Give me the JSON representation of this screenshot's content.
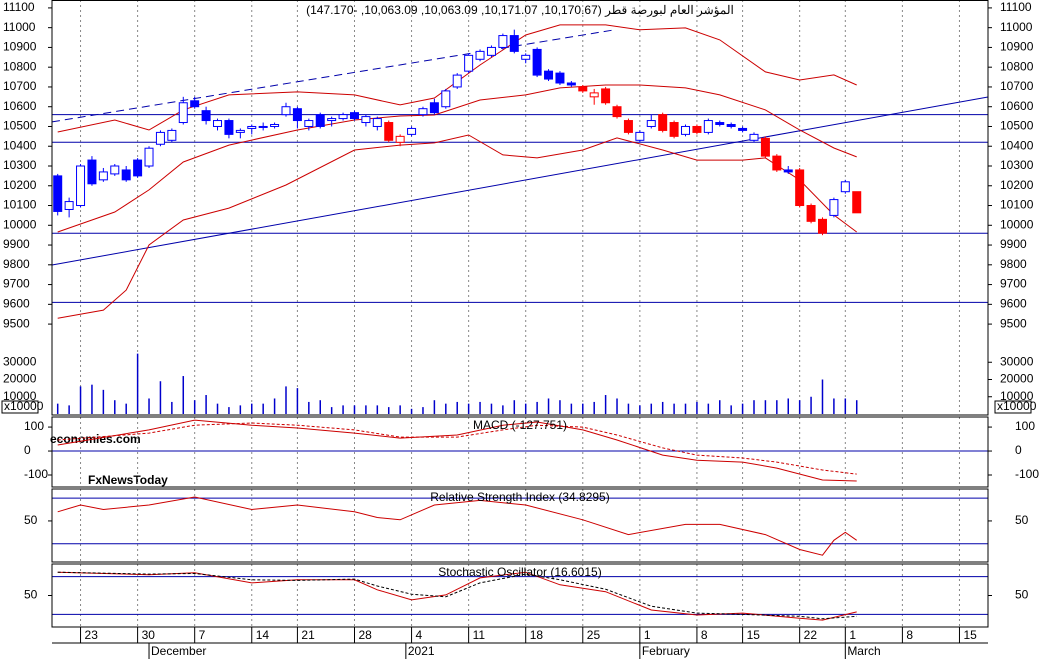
{
  "chart_data": {
    "type": "candlestick",
    "title": "المؤشر العام لبورصة قطر (10,170.67, 10,171.07, 10,063.09, 10,063.09, -147.170)",
    "xlim": [
      -0.5,
      81.5
    ],
    "ylim": [
      9040,
      11140
    ],
    "yticks": [
      9500,
      9600,
      9700,
      9800,
      9900,
      10000,
      10100,
      10200,
      10300,
      10400,
      10500,
      10600,
      10700,
      10800,
      10900,
      11000,
      11100
    ],
    "xticks": [
      {
        "value": 2,
        "label": "23"
      },
      {
        "value": 7,
        "label": "30"
      },
      {
        "value": 12,
        "label": "7"
      },
      {
        "value": 17,
        "label": "14"
      },
      {
        "value": 21,
        "label": "21"
      },
      {
        "value": 26,
        "label": "28"
      },
      {
        "value": 31,
        "label": "4"
      },
      {
        "value": 36,
        "label": "11"
      },
      {
        "value": 41,
        "label": "18"
      },
      {
        "value": 46,
        "label": "25"
      },
      {
        "value": 51,
        "label": "1"
      },
      {
        "value": 56,
        "label": "8"
      },
      {
        "value": 60,
        "label": "15"
      },
      {
        "value": 65,
        "label": "22"
      },
      {
        "value": 69,
        "label": "1"
      },
      {
        "value": 74,
        "label": "8"
      },
      {
        "value": 79,
        "label": "15"
      }
    ],
    "months": [
      {
        "value": 8,
        "label": "December"
      },
      {
        "value": 30.5,
        "label": "2021"
      },
      {
        "value": 51,
        "label": "February"
      },
      {
        "value": 69,
        "label": "March"
      }
    ],
    "ohlc": [
      [
        10250,
        10260,
        10050,
        10070
      ],
      [
        10080,
        10140,
        10040,
        10120
      ],
      [
        10100,
        10310,
        10090,
        10300
      ],
      [
        10330,
        10350,
        10200,
        10210
      ],
      [
        10230,
        10290,
        10220,
        10270
      ],
      [
        10260,
        10310,
        10250,
        10300
      ],
      [
        10280,
        10300,
        10220,
        10230
      ],
      [
        10330,
        10340,
        10240,
        10250
      ],
      [
        10300,
        10400,
        10290,
        10390
      ],
      [
        10410,
        10480,
        10400,
        10470
      ],
      [
        10430,
        10490,
        10420,
        10480
      ],
      [
        10520,
        10650,
        10510,
        10620
      ],
      [
        10630,
        10650,
        10590,
        10600
      ],
      [
        10580,
        10600,
        10510,
        10530
      ],
      [
        10500,
        10540,
        10480,
        10530
      ],
      [
        10530,
        10540,
        10440,
        10460
      ],
      [
        10470,
        10490,
        10440,
        10480
      ],
      [
        10490,
        10510,
        10460,
        10500
      ],
      [
        10500,
        10520,
        10480,
        10495
      ],
      [
        10500,
        10520,
        10490,
        10510
      ],
      [
        10560,
        10620,
        10550,
        10600
      ],
      [
        10590,
        10600,
        10490,
        10530
      ],
      [
        10500,
        10540,
        10480,
        10530
      ],
      [
        10560,
        10570,
        10490,
        10500
      ],
      [
        10530,
        10550,
        10500,
        10540
      ],
      [
        10540,
        10570,
        10530,
        10560
      ],
      [
        10570,
        10580,
        10530,
        10540
      ],
      [
        10520,
        10560,
        10500,
        10550
      ],
      [
        10500,
        10550,
        10480,
        10540
      ],
      [
        10520,
        10530,
        10420,
        10430
      ],
      [
        10420,
        10460,
        10400,
        10450
      ],
      [
        10460,
        10500,
        10450,
        10490
      ],
      [
        10560,
        10600,
        10550,
        10590
      ],
      [
        10620,
        10640,
        10560,
        10570
      ],
      [
        10600,
        10690,
        10590,
        10680
      ],
      [
        10700,
        10770,
        10690,
        10760
      ],
      [
        10780,
        10870,
        10770,
        10860
      ],
      [
        10840,
        10890,
        10830,
        10880
      ],
      [
        10860,
        10910,
        10850,
        10900
      ],
      [
        10900,
        10970,
        10890,
        10960
      ],
      [
        10960,
        10990,
        10870,
        10880
      ],
      [
        10840,
        10870,
        10820,
        10860
      ],
      [
        10890,
        10900,
        10750,
        10760
      ],
      [
        10780,
        10790,
        10730,
        10740
      ],
      [
        10770,
        10780,
        10710,
        10720
      ],
      [
        10720,
        10730,
        10700,
        10710
      ],
      [
        10700,
        10710,
        10670,
        10680
      ],
      [
        10650,
        10690,
        10610,
        10670
      ],
      [
        10690,
        10700,
        10610,
        10620
      ],
      [
        10600,
        10610,
        10540,
        10550
      ],
      [
        10530,
        10540,
        10460,
        10470
      ],
      [
        10430,
        10480,
        10420,
        10470
      ],
      [
        10500,
        10560,
        10490,
        10530
      ],
      [
        10560,
        10570,
        10470,
        10480
      ],
      [
        10520,
        10530,
        10440,
        10450
      ],
      [
        10460,
        10510,
        10450,
        10500
      ],
      [
        10500,
        10510,
        10460,
        10470
      ],
      [
        10470,
        10540,
        10460,
        10530
      ],
      [
        10520,
        10530,
        10500,
        10510
      ],
      [
        10510,
        10520,
        10490,
        10500
      ],
      [
        10490,
        10500,
        10470,
        10480
      ],
      [
        10430,
        10470,
        10420,
        10460
      ],
      [
        10440,
        10450,
        10340,
        10350
      ],
      [
        10350,
        10360,
        10270,
        10280
      ],
      [
        10280,
        10300,
        10260,
        10270
      ],
      [
        10280,
        10290,
        10090,
        10100
      ],
      [
        10100,
        10110,
        10010,
        10020
      ],
      [
        10030,
        10040,
        9950,
        9960
      ],
      [
        10050,
        10140,
        10040,
        10130
      ],
      [
        10170,
        10230,
        10160,
        10220
      ],
      [
        10170,
        10171.07,
        10063.09,
        10063.09
      ]
    ],
    "colors": [
      "#0000ff",
      "#0000ff",
      "#0000ff",
      "#0000ff",
      "#0000ff",
      "#0000ff",
      "#0000ff",
      "#0000ff",
      "#0000ff",
      "#0000ff",
      "#0000ff",
      "#0000ff",
      "#0000ff",
      "#0000ff",
      "#0000ff",
      "#0000ff",
      "#0000ff",
      "#0000ff",
      "#0000ff",
      "#0000ff",
      "#0000ff",
      "#0000ff",
      "#0000ff",
      "#0000ff",
      "#0000ff",
      "#0000ff",
      "#0000ff",
      "#0000ff",
      "#0000ff",
      "#ff0000",
      "#ff0000",
      "#0000ff",
      "#0000ff",
      "#0000ff",
      "#0000ff",
      "#0000ff",
      "#0000ff",
      "#0000ff",
      "#0000ff",
      "#0000ff",
      "#0000ff",
      "#0000ff",
      "#0000ff",
      "#0000ff",
      "#0000ff",
      "#0000ff",
      "#ff0000",
      "#ff0000",
      "#ff0000",
      "#ff0000",
      "#ff0000",
      "#0000ff",
      "#0000ff",
      "#ff0000",
      "#ff0000",
      "#0000ff",
      "#ff0000",
      "#0000ff",
      "#0000ff",
      "#0000ff",
      "#0000ff",
      "#0000ff",
      "#ff0000",
      "#ff0000",
      "#0000ff",
      "#ff0000",
      "#ff0000",
      "#ff0000",
      "#0000ff",
      "#0000ff",
      "#ff0000"
    ],
    "bands": {
      "color": "#cc0000",
      "lines": [
        {
          "x": [
            0,
            5,
            8,
            11,
            15,
            21,
            26,
            30,
            33,
            37,
            41,
            44,
            48,
            51,
            55,
            58,
            62,
            65,
            68,
            70
          ],
          "values": [
            10472,
            10533,
            10482,
            10584,
            10660,
            10675,
            10660,
            10609,
            10644,
            10811,
            10963,
            11014,
            11014,
            10989,
            10999,
            10938,
            10776,
            10735,
            10761,
            10710
          ]
        },
        {
          "x": [
            0,
            5,
            8,
            11,
            15,
            21,
            26,
            30,
            33,
            37,
            41,
            44,
            48,
            51,
            55,
            58,
            62,
            65,
            68,
            70
          ],
          "values": [
            9966,
            10067,
            10179,
            10320,
            10406,
            10482,
            10533,
            10553,
            10558,
            10634,
            10660,
            10695,
            10710,
            10710,
            10695,
            10660,
            10584,
            10482,
            10391,
            10346
          ]
        },
        {
          "x": [
            0,
            4,
            6,
            8,
            11,
            15,
            20,
            26,
            30,
            33,
            36,
            39,
            42,
            46,
            49,
            53,
            56,
            60,
            62,
            65,
            68,
            70
          ],
          "values": [
            9530,
            9571,
            9672,
            9900,
            10027,
            10087,
            10204,
            10381,
            10406,
            10417,
            10457,
            10356,
            10341,
            10381,
            10442,
            10381,
            10330,
            10330,
            10341,
            10229,
            10052,
            9966
          ]
        }
      ]
    },
    "levels": {
      "color": "#0000aa",
      "values": [
        10560,
        10420,
        9960,
        9610
      ]
    },
    "trendlines": {
      "color": "#0000aa",
      "lines": [
        {
          "x": [
            -0.5,
            81.5
          ],
          "y": [
            9799,
            10649
          ],
          "dashed": false
        },
        {
          "x": [
            -0.5,
            48.8
          ],
          "y": [
            10523,
            10989
          ],
          "dashed": true
        }
      ]
    },
    "volume": {
      "color": "#0000cc",
      "ylim": [
        0,
        40000
      ],
      "yticks": [
        10000,
        20000,
        30000
      ],
      "unit": "x10000",
      "values": [
        6000,
        5000,
        16000,
        17000,
        14000,
        8000,
        6000,
        35000,
        9000,
        19000,
        7000,
        22000,
        8000,
        11000,
        6000,
        4000,
        5000,
        6000,
        6000,
        9000,
        16000,
        15000,
        7000,
        8000,
        4000,
        5000,
        5000,
        5000,
        5000,
        4000,
        5000,
        3000,
        4000,
        8000,
        6000,
        7000,
        6000,
        7000,
        6000,
        5000,
        8000,
        6000,
        7000,
        9000,
        8000,
        6000,
        6000,
        7000,
        11000,
        9000,
        6000,
        5000,
        6000,
        7000,
        6000,
        6000,
        7000,
        6000,
        8000,
        5000,
        6000,
        8000,
        8000,
        8000,
        9000,
        8000,
        10000,
        20000,
        9000,
        9000,
        8000
      ]
    },
    "watermark": [
      "economies.com",
      "FxNewsToday"
    ],
    "indicators": [
      {
        "title": "MACD (-127.751)",
        "ylim": [
          -150,
          142
        ],
        "yticks": [
          100,
          0,
          -100
        ],
        "levels": [
          0
        ],
        "series": [
          {
            "color": "#cc0000",
            "dashed": false,
            "x": [
              0,
              8,
              12,
              17,
              21,
              26,
              30,
              35,
              39,
              42,
              46,
              49,
              53,
              56,
              60,
              63,
              67,
              70
            ],
            "values": [
              25,
              88,
              129,
              108,
              96,
              75,
              54,
              67,
              108,
              121,
              88,
              46,
              -17,
              -38,
              -46,
              -71,
              -121,
              -125
            ]
          },
          {
            "color": "#cc0000",
            "dashed": true,
            "x": [
              0,
              8,
              12,
              17,
              21,
              26,
              30,
              35,
              39,
              42,
              46,
              49,
              53,
              56,
              60,
              63,
              67,
              70
            ],
            "values": [
              46,
              75,
              108,
              117,
              108,
              88,
              58,
              58,
              88,
              108,
              100,
              67,
              13,
              -17,
              -29,
              -46,
              -79,
              -96
            ]
          }
        ]
      },
      {
        "title": "Relative Strength Index (34.8295)",
        "ylim": [
          14,
          78
        ],
        "yticks": [
          50
        ],
        "levels": [
          70,
          30
        ],
        "series": [
          {
            "color": "#cc0000",
            "dashed": false,
            "x": [
              0,
              2,
              4,
              8,
              12,
              17,
              21,
              26,
              28,
              30,
              33,
              37,
              41,
              46,
              50,
              55,
              58,
              62,
              65,
              67,
              68,
              69,
              70
            ],
            "values": [
              58,
              64,
              60,
              64,
              71,
              60,
              64,
              58,
              53,
              51,
              64,
              68,
              64,
              51,
              38,
              47,
              47,
              38,
              25,
              20,
              33,
              40,
              33
            ]
          }
        ]
      },
      {
        "title": "Stochastic Oscillator (16.6015)",
        "ylim": [
          0,
          100
        ],
        "yticks": [
          50
        ],
        "levels": [
          80,
          20
        ],
        "series": [
          {
            "color": "#cc0000",
            "dashed": false,
            "x": [
              0,
              8,
              12,
              17,
              21,
              26,
              28,
              31,
              34,
              37,
              41,
              44,
              48,
              52,
              56,
              60,
              65,
              67,
              70
            ],
            "values": [
              87,
              83,
              86,
              70,
              75,
              75,
              59,
              43,
              51,
              78,
              87,
              67,
              56,
              27,
              19,
              22,
              14,
              11,
              24
            ]
          },
          {
            "color": "#000000",
            "dashed": true,
            "x": [
              0,
              8,
              12,
              17,
              21,
              26,
              28,
              31,
              34,
              37,
              41,
              44,
              48,
              52,
              56,
              60,
              65,
              67,
              70
            ],
            "values": [
              87,
              84,
              85,
              75,
              74,
              76,
              65,
              52,
              48,
              70,
              84,
              75,
              60,
              33,
              22,
              20,
              17,
              13,
              17
            ]
          }
        ]
      }
    ]
  }
}
